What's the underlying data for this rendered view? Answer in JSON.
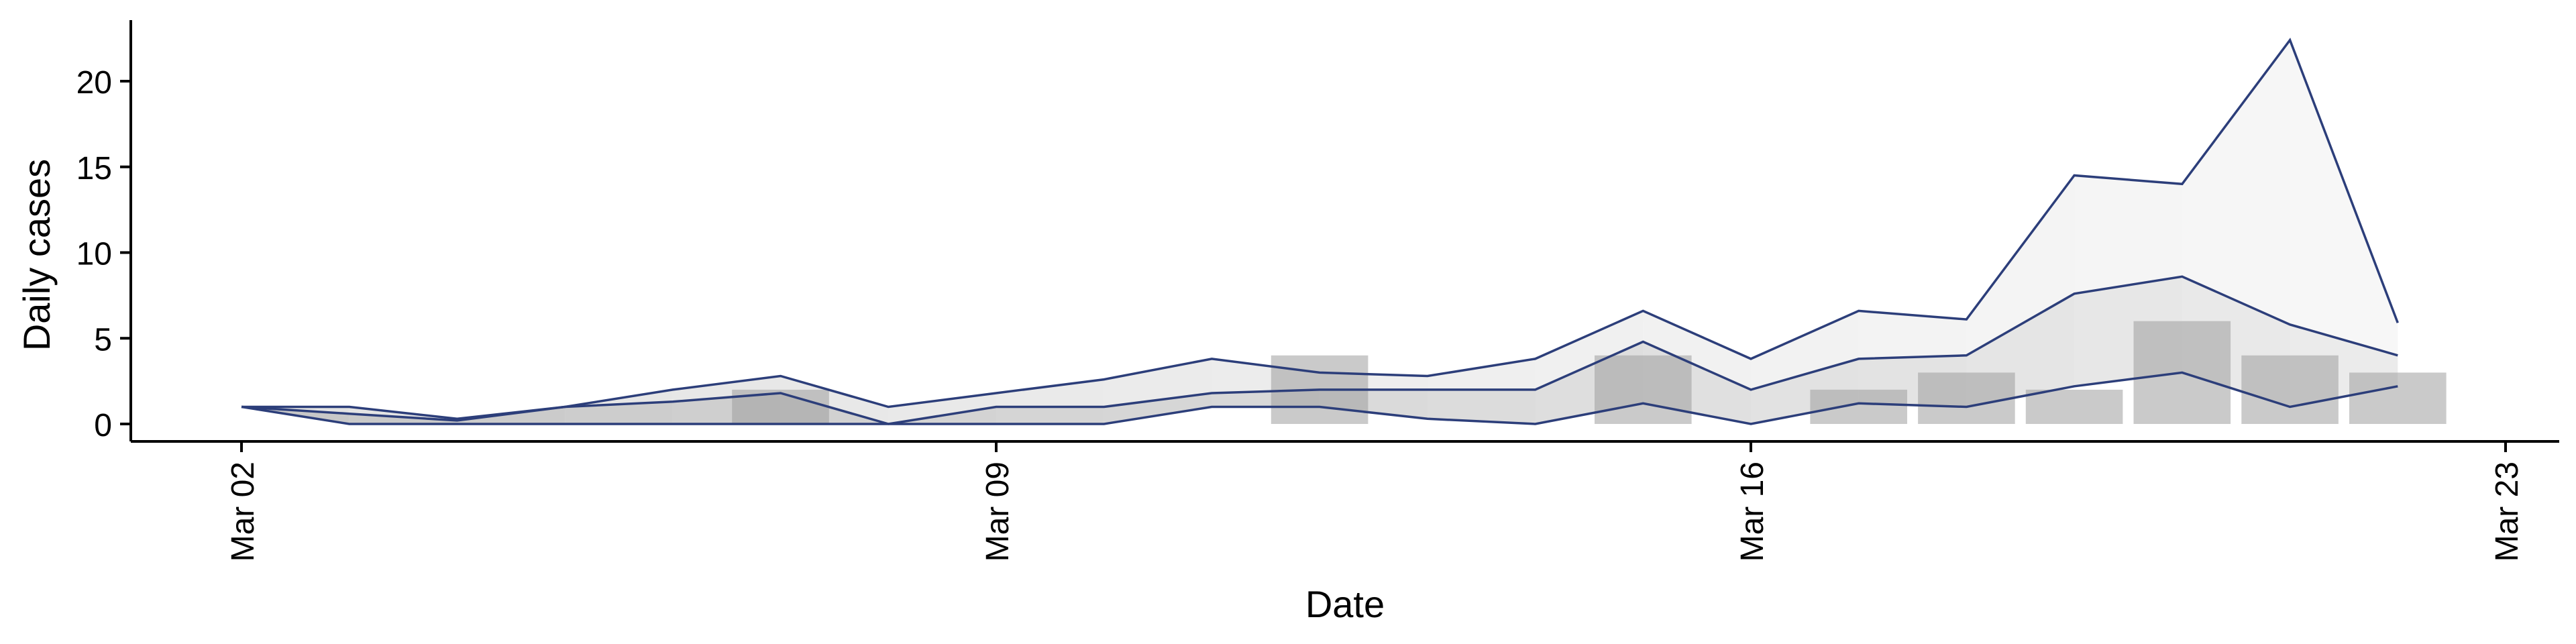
{
  "chart_data": {
    "type": "area",
    "title": "",
    "xlabel": "Date",
    "ylabel": "Daily cases",
    "x_ticks": [
      "Mar 02",
      "Mar 09",
      "Mar 16",
      "Mar 23"
    ],
    "y_ticks": [
      "0",
      "5",
      "10",
      "15",
      "20"
    ],
    "xlim": [
      "2020-03-02",
      "2020-03-23"
    ],
    "ylim": [
      -1,
      23.5
    ],
    "grid": false,
    "legend": "none",
    "dates": [
      "2020-03-02",
      "2020-03-03",
      "2020-03-04",
      "2020-03-05",
      "2020-03-06",
      "2020-03-07",
      "2020-03-08",
      "2020-03-09",
      "2020-03-10",
      "2020-03-11",
      "2020-03-12",
      "2020-03-13",
      "2020-03-14",
      "2020-03-15",
      "2020-03-16",
      "2020-03-17",
      "2020-03-18",
      "2020-03-19",
      "2020-03-20",
      "2020-03-21",
      "2020-03-22"
    ],
    "series": [
      {
        "role": "upper",
        "values": [
          1,
          1,
          0.3,
          1,
          2,
          2.8,
          1,
          1.8,
          2.6,
          3.8,
          3.0,
          2.8,
          3.8,
          6.6,
          3.8,
          6.6,
          6.1,
          14.5,
          14.0,
          22.4,
          5.9
        ]
      },
      {
        "role": "median",
        "values": [
          1,
          0.6,
          0.2,
          1,
          1.3,
          1.8,
          0,
          1.0,
          1.0,
          1.8,
          2.0,
          2.0,
          2.0,
          4.8,
          2.0,
          3.8,
          4.0,
          7.6,
          8.6,
          5.8,
          4.0
        ]
      },
      {
        "role": "lower",
        "values": [
          1,
          0,
          0,
          0,
          0,
          0,
          0,
          0,
          0,
          1,
          1,
          0.3,
          0,
          1.2,
          0,
          1.2,
          1.0,
          2.2,
          3.0,
          1.0,
          2.2
        ]
      }
    ],
    "bars": [
      {
        "date": "2020-03-07",
        "value": 2
      },
      {
        "date": "2020-03-12",
        "value": 4
      },
      {
        "date": "2020-03-15",
        "value": 4
      },
      {
        "date": "2020-03-17",
        "value": 2
      },
      {
        "date": "2020-03-18",
        "value": 3
      },
      {
        "date": "2020-03-19",
        "value": 2
      },
      {
        "date": "2020-03-20",
        "value": 6
      },
      {
        "date": "2020-03-21",
        "value": 4
      },
      {
        "date": "2020-03-22",
        "value": 3
      }
    ],
    "colors": {
      "line": "#2c3e7a",
      "bar": "#9e9e9e",
      "band_outer": "#d9d9d9",
      "band_inner": "#9a9a9a"
    }
  }
}
